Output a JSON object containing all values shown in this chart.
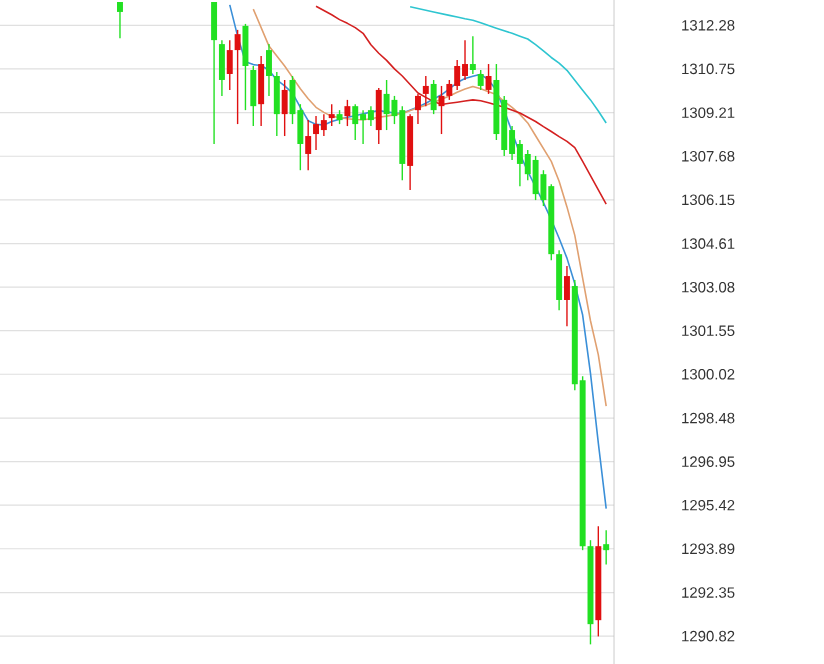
{
  "chart_data": {
    "type": "candlestick",
    "categories": [
      null,
      null,
      null,
      null,
      null,
      null,
      null,
      null,
      null,
      null,
      null,
      null,
      null,
      null,
      null,
      null,
      null,
      null,
      null,
      null,
      null,
      null,
      null,
      null,
      null,
      null,
      null,
      null,
      null,
      null,
      null,
      null,
      null,
      null,
      null,
      null,
      null,
      null,
      null,
      null,
      null,
      null,
      null,
      null,
      null,
      null,
      null,
      null,
      null,
      null,
      null,
      null,
      null,
      null,
      null,
      null,
      null,
      null,
      null,
      null,
      null,
      null,
      null
    ],
    "ohlc": [
      [
        1313.1,
        1313.1,
        1311.83,
        1312.75
      ],
      null,
      null,
      null,
      null,
      null,
      null,
      null,
      null,
      null,
      null,
      null,
      [
        1313.1,
        1313.1,
        1308.11,
        1311.76
      ],
      [
        1311.62,
        1311.76,
        1309.8,
        1310.36
      ],
      [
        1310.57,
        1311.76,
        1310.01,
        1311.41
      ],
      [
        1311.41,
        1312.12,
        1308.81,
        1311.97
      ],
      [
        1312.26,
        1312.33,
        1309.3,
        1310.85
      ],
      [
        1310.71,
        1310.85,
        1308.74,
        1309.44
      ],
      [
        1309.51,
        1311.2,
        1308.74,
        1310.92
      ],
      [
        1311.41,
        1311.62,
        1309.8,
        1310.5
      ],
      [
        1310.5,
        1310.64,
        1308.39,
        1309.16
      ],
      [
        1309.16,
        1310.36,
        1308.39,
        1310.01
      ],
      [
        1310.36,
        1310.5,
        1308.81,
        1309.16
      ],
      [
        1309.3,
        1309.51,
        1307.19,
        1308.11
      ],
      [
        1307.76,
        1308.95,
        1307.19,
        1308.39
      ],
      [
        1308.46,
        1309.09,
        1307.9,
        1308.81
      ],
      [
        1308.6,
        1309.16,
        1308.39,
        1308.95
      ],
      [
        1309.02,
        1309.51,
        1308.74,
        1309.16
      ],
      [
        1309.16,
        1309.3,
        1308.81,
        1308.95
      ],
      [
        1309.09,
        1309.66,
        1308.74,
        1309.44
      ],
      [
        1309.44,
        1309.51,
        1308.25,
        1308.81
      ],
      [
        1309.16,
        1309.3,
        1308.11,
        1308.95
      ],
      [
        1309.3,
        1309.44,
        1308.74,
        1308.95
      ],
      [
        1308.6,
        1310.08,
        1308.11,
        1310.01
      ],
      [
        1309.87,
        1310.36,
        1308.6,
        1309.16
      ],
      [
        1309.66,
        1309.8,
        1308.81,
        1309.09
      ],
      [
        1309.3,
        1309.44,
        1306.84,
        1307.41
      ],
      [
        1307.34,
        1309.16,
        1306.49,
        1309.09
      ],
      [
        1309.3,
        1309.87,
        1308.81,
        1309.8
      ],
      [
        1309.87,
        1310.5,
        1309.44,
        1310.15
      ],
      [
        1310.22,
        1310.36,
        1309.16,
        1309.3
      ],
      [
        1309.44,
        1310.15,
        1308.46,
        1309.8
      ],
      [
        1309.8,
        1310.36,
        1309.66,
        1310.22
      ],
      [
        1310.15,
        1311.06,
        1310.01,
        1310.85
      ],
      [
        1310.5,
        1311.76,
        1310.36,
        1310.92
      ],
      [
        1310.92,
        1311.9,
        1310.57,
        1310.71
      ],
      [
        1310.57,
        1310.71,
        1310.01,
        1310.15
      ],
      [
        1310.01,
        1310.92,
        1309.87,
        1310.5
      ],
      [
        1310.36,
        1310.92,
        1308.25,
        1308.46
      ],
      [
        1309.66,
        1309.8,
        1307.69,
        1307.9
      ],
      [
        1308.6,
        1308.74,
        1307.55,
        1307.76
      ],
      [
        1308.11,
        1308.25,
        1306.63,
        1307.41
      ],
      [
        1307.76,
        1307.9,
        1306.84,
        1307.05
      ],
      [
        1307.55,
        1307.69,
        1306.14,
        1306.35
      ],
      [
        1307.05,
        1307.19,
        1305.93,
        1306.14
      ],
      [
        1306.63,
        1306.7,
        1304.03,
        1304.24
      ],
      [
        1304.24,
        1304.38,
        1302.27,
        1302.63
      ],
      [
        1302.63,
        1303.82,
        1301.71,
        1303.47
      ],
      [
        1303.12,
        1303.33,
        1299.46,
        1299.67
      ],
      [
        1299.81,
        1299.95,
        1293.84,
        1293.98
      ],
      [
        1293.98,
        1294.19,
        1290.53,
        1291.24
      ],
      [
        1291.38,
        1294.68,
        1290.81,
        1293.98
      ],
      [
        1294.05,
        1294.54,
        1293.34,
        1293.84
      ]
    ],
    "colors": [
      "#22e022",
      null,
      null,
      null,
      null,
      null,
      null,
      null,
      null,
      null,
      null,
      null,
      "#22e022",
      "#22e022",
      "#e01010",
      "#e01010",
      "#22e022",
      "#22e022",
      "#e01010",
      "#22e022",
      "#22e022",
      "#e01010",
      "#22e022",
      "#22e022",
      "#e01010",
      "#e01010",
      "#e01010",
      "#e01010",
      "#22e022",
      "#e01010",
      "#22e022",
      "#22e022",
      "#22e022",
      "#e01010",
      "#22e022",
      "#22e022",
      "#22e022",
      "#e01010",
      "#e01010",
      "#e01010",
      "#22e022",
      "#e01010",
      "#e01010",
      "#e01010",
      "#e01010",
      "#22e022",
      "#22e022",
      "#e01010",
      "#22e022",
      "#22e022",
      "#22e022",
      "#22e022",
      "#22e022",
      "#22e022",
      "#22e022",
      "#22e022",
      "#22e022",
      "#e01010",
      "#22e022",
      "#22e022",
      "#22e022",
      "#e01010",
      "#22e022"
    ],
    "series": [
      {
        "type": "line",
        "color": "#3a8fd8",
        "values": [
          null,
          null,
          null,
          null,
          null,
          null,
          null,
          null,
          null,
          null,
          null,
          null,
          null,
          null,
          1313.0,
          1311.9,
          1311.0,
          1310.9,
          1310.87,
          1310.7,
          1310.36,
          1310.15,
          1309.9,
          1309.4,
          1308.93,
          1308.8,
          1308.78,
          1308.9,
          1308.98,
          1309.05,
          1309.1,
          1309.17,
          1309.23,
          1309.29,
          1309.24,
          1309.2,
          1309.19,
          1309.3,
          1309.41,
          1309.54,
          1309.69,
          1309.84,
          1310.05,
          1310.27,
          1310.41,
          1310.49,
          1310.56,
          1310.36,
          1310.0,
          1309.3,
          1308.53,
          1307.76,
          1307.15,
          1306.6,
          1306.05,
          1305.45,
          1304.8,
          1304.1,
          1303.2,
          1302.1,
          1300.05,
          1297.6,
          1295.3
        ]
      },
      {
        "type": "line",
        "color": "#e0a070",
        "values": [
          null,
          null,
          null,
          null,
          null,
          null,
          null,
          null,
          null,
          null,
          null,
          null,
          null,
          null,
          null,
          null,
          null,
          1312.85,
          1312.2,
          1311.55,
          1311.2,
          1310.85,
          1310.45,
          1310.05,
          1309.7,
          1309.4,
          1309.22,
          1309.08,
          1309.04,
          1309.0,
          1308.97,
          1308.96,
          1309.0,
          1309.05,
          1309.09,
          1309.14,
          1309.18,
          1309.28,
          1309.38,
          1309.47,
          1309.58,
          1309.68,
          1309.8,
          1309.93,
          1310.04,
          1310.13,
          1310.05,
          1309.95,
          1309.85,
          1309.6,
          1309.4,
          1309.15,
          1308.85,
          1308.4,
          1307.95,
          1307.5,
          1306.8,
          1305.9,
          1304.9,
          1303.4,
          1301.9,
          1300.7,
          1298.9
        ]
      },
      {
        "type": "line",
        "color": "#d42020",
        "values": [
          null,
          null,
          null,
          null,
          null,
          null,
          null,
          null,
          null,
          null,
          null,
          null,
          null,
          null,
          null,
          null,
          null,
          null,
          null,
          null,
          null,
          null,
          null,
          null,
          null,
          1312.95,
          1312.8,
          1312.65,
          1312.48,
          1312.35,
          1312.2,
          1312.0,
          1311.6,
          1311.3,
          1311.05,
          1310.75,
          1310.5,
          1310.2,
          1309.9,
          1309.75,
          1309.6,
          1309.5,
          1309.54,
          1309.58,
          1309.62,
          1309.66,
          1309.63,
          1309.56,
          1309.48,
          1309.4,
          1309.3,
          1309.2,
          1309.05,
          1308.9,
          1308.72,
          1308.55,
          1308.37,
          1308.2,
          1307.98,
          1307.5,
          1307.0,
          1306.5,
          1306.0
        ]
      },
      {
        "type": "line",
        "color": "#2ec5d0",
        "values": [
          null,
          null,
          null,
          null,
          null,
          null,
          null,
          null,
          null,
          null,
          null,
          null,
          null,
          null,
          null,
          null,
          null,
          null,
          null,
          null,
          null,
          null,
          null,
          null,
          null,
          null,
          null,
          null,
          null,
          null,
          null,
          null,
          null,
          null,
          null,
          null,
          null,
          1312.93,
          1312.87,
          1312.81,
          1312.75,
          1312.69,
          1312.63,
          1312.57,
          1312.51,
          1312.46,
          1312.37,
          1312.27,
          1312.18,
          1312.09,
          1312.0,
          1311.9,
          1311.8,
          1311.6,
          1311.38,
          1311.15,
          1310.95,
          1310.7,
          1310.35,
          1310.0,
          1309.66,
          1309.27,
          1308.85
        ]
      }
    ],
    "ylim": [
      1289.84,
      1313.17
    ],
    "yticks": [
      1312.28,
      1310.75,
      1309.21,
      1307.68,
      1306.15,
      1304.61,
      1303.08,
      1301.55,
      1300.02,
      1298.48,
      1296.95,
      1295.42,
      1293.89,
      1292.35,
      1290.82
    ],
    "grid": "y",
    "tick_labels": "y"
  }
}
